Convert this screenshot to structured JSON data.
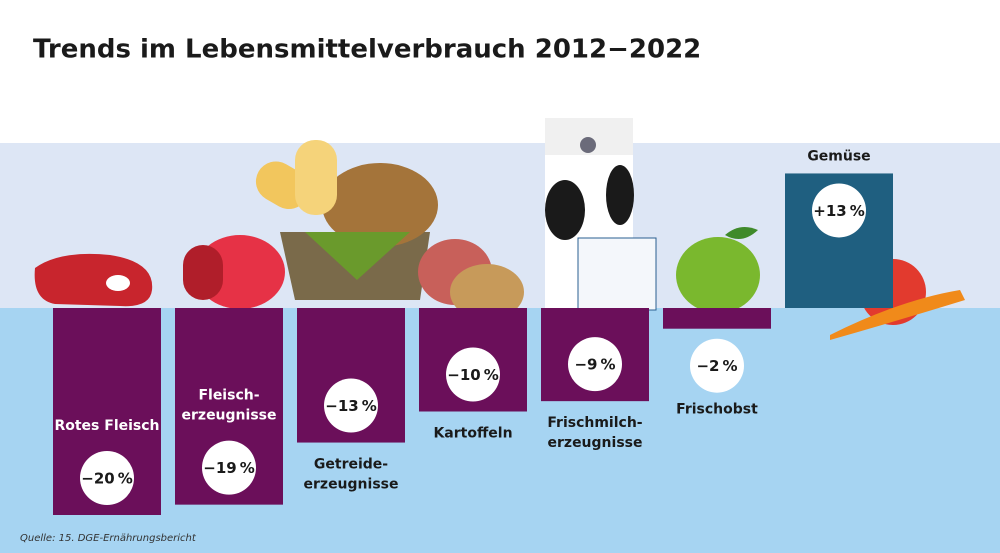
{
  "chart_data": {
    "type": "bar",
    "title": "Trends im Lebensmittelverbrauch 2012−2022",
    "categories": [
      "Rotes Fleisch",
      "Fleisch-\nerzeugnisse",
      "Getreide-\nerzeugnisse",
      "Kartoffeln",
      "Frischmilch-\nerzeugnisse",
      "Frischobst",
      "Gemüse"
    ],
    "values": [
      -20,
      -19,
      -13,
      -10,
      -9,
      -2,
      13
    ],
    "value_labels": [
      "−20 %",
      "−19 %",
      "−13 %",
      "−10 %",
      "−9 %",
      "−2 %",
      "+13 %"
    ],
    "colors": {
      "negative": "#6b0f5a",
      "positive": "#1f5f80"
    },
    "source": "Quelle: 15. DGE-Ernährungsbericht"
  }
}
